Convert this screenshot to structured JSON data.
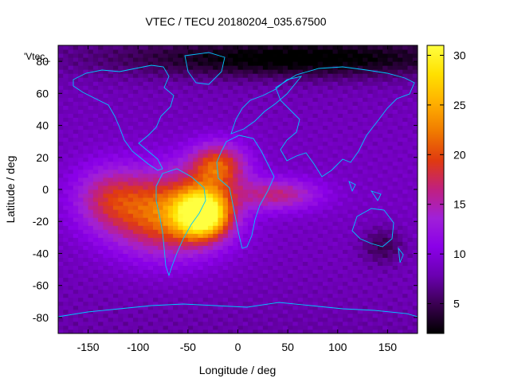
{
  "chart_data": {
    "type": "heatmap",
    "title": "VTEC / TECU 20180204_035.67500",
    "xlabel": "Longitude / deg",
    "ylabel": "Latitude / deg",
    "series_label": "'Vtec_",
    "xlim": [
      -180,
      180
    ],
    "ylim": [
      -90,
      90
    ],
    "x_ticks": [
      -150,
      -100,
      -50,
      0,
      50,
      100,
      150
    ],
    "y_ticks": [
      -80,
      -60,
      -40,
      -20,
      0,
      20,
      40,
      60,
      80
    ],
    "x_tick_labels": [
      "-150",
      "-100",
      "-50",
      "0",
      "50",
      "100",
      "150"
    ],
    "y_tick_labels": [
      "-80",
      "-60",
      "-40",
      "-20",
      "0",
      "20",
      "40",
      "60",
      "80"
    ],
    "colorbar": {
      "min": 2,
      "max": 31,
      "ticks": [
        5,
        10,
        15,
        20,
        25,
        30
      ],
      "tick_labels": [
        "5",
        "10",
        "15",
        "20",
        "25",
        "30"
      ],
      "palette": [
        "#000000",
        "#3a0050",
        "#6a00b0",
        "#8a00e8",
        "#a020d8",
        "#c02080",
        "#e03a10",
        "#f07a00",
        "#ffb000",
        "#ffe000",
        "#ffff40"
      ]
    },
    "background_level": 8.5,
    "features": [
      {
        "name": "equatorial-anomaly-south-america",
        "lon": -35,
        "lat": -15,
        "peak": 30,
        "sigma_lon": 18,
        "sigma_lat": 10
      },
      {
        "name": "equatorial-anomaly-south-atlantic",
        "lon": -70,
        "lat": -15,
        "peak": 22,
        "sigma_lon": 40,
        "sigma_lat": 18
      },
      {
        "name": "equatorial-anomaly-africa-west",
        "lon": -20,
        "lat": 15,
        "peak": 20,
        "sigma_lon": 20,
        "sigma_lat": 10
      },
      {
        "name": "equatorial-tongue-east",
        "lon": 40,
        "lat": -3,
        "peak": 16,
        "sigma_lon": 30,
        "sigma_lat": 7
      },
      {
        "name": "pacific-crest",
        "lon": -130,
        "lat": -5,
        "peak": 15,
        "sigma_lon": 25,
        "sigma_lat": 14
      },
      {
        "name": "high-latitude-north-low",
        "lon": 60,
        "lat": 82,
        "peak": 2,
        "sigma_lon": 120,
        "sigma_lat": 8
      },
      {
        "name": "australia-low",
        "lon": 145,
        "lat": -35,
        "peak": 5,
        "sigma_lon": 15,
        "sigma_lat": 8
      }
    ]
  }
}
